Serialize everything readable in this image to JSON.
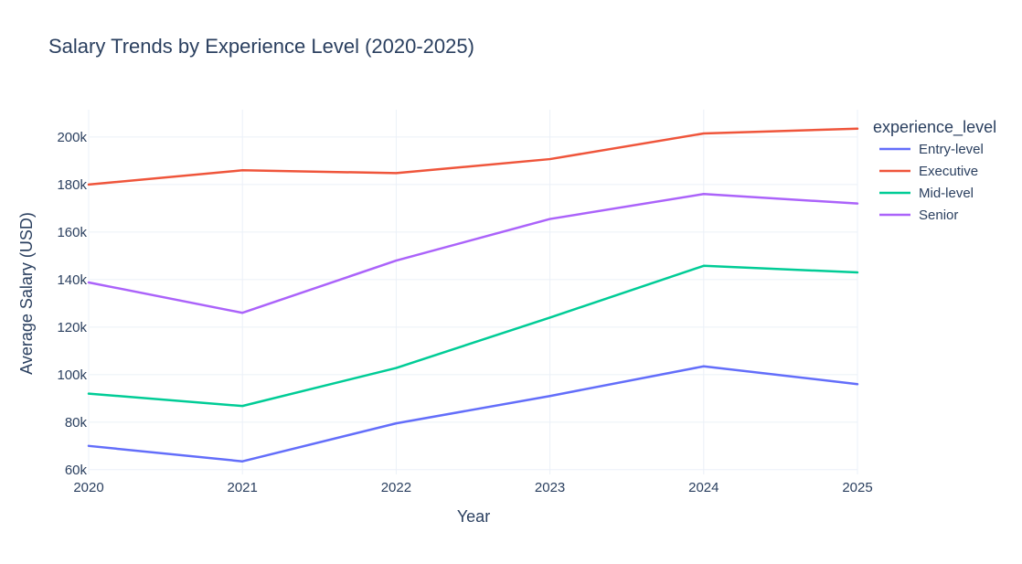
{
  "chart_data": {
    "type": "line",
    "title": "Salary Trends by Experience Level (2020-2025)",
    "xlabel": "Year",
    "ylabel": "Average Salary (USD)",
    "x": [
      2020,
      2021,
      2022,
      2023,
      2024,
      2025
    ],
    "x_tick_labels": [
      "2020",
      "2021",
      "2022",
      "2023",
      "2024",
      "2025"
    ],
    "xlim": [
      2020,
      2025
    ],
    "ylim": [
      58000,
      211500
    ],
    "y_ticks": [
      60000,
      80000,
      100000,
      120000,
      140000,
      160000,
      180000,
      200000
    ],
    "y_tick_labels": [
      "60k",
      "80k",
      "100k",
      "120k",
      "140k",
      "160k",
      "180k",
      "200k"
    ],
    "grid": true,
    "legend": {
      "title": "experience_level",
      "placement": "right"
    },
    "series": [
      {
        "name": "Entry-level",
        "color": "#636efa",
        "values": [
          70000,
          63500,
          79500,
          91000,
          103500,
          96000
        ]
      },
      {
        "name": "Executive",
        "color": "#ef553b",
        "values": [
          180000,
          186000,
          184800,
          190700,
          201500,
          203500
        ]
      },
      {
        "name": "Mid-level",
        "color": "#00cc96",
        "values": [
          92000,
          86800,
          102800,
          124000,
          145800,
          143000
        ]
      },
      {
        "name": "Senior",
        "color": "#ab63fa",
        "values": [
          138800,
          126000,
          148000,
          165500,
          176000,
          172000
        ]
      }
    ]
  }
}
